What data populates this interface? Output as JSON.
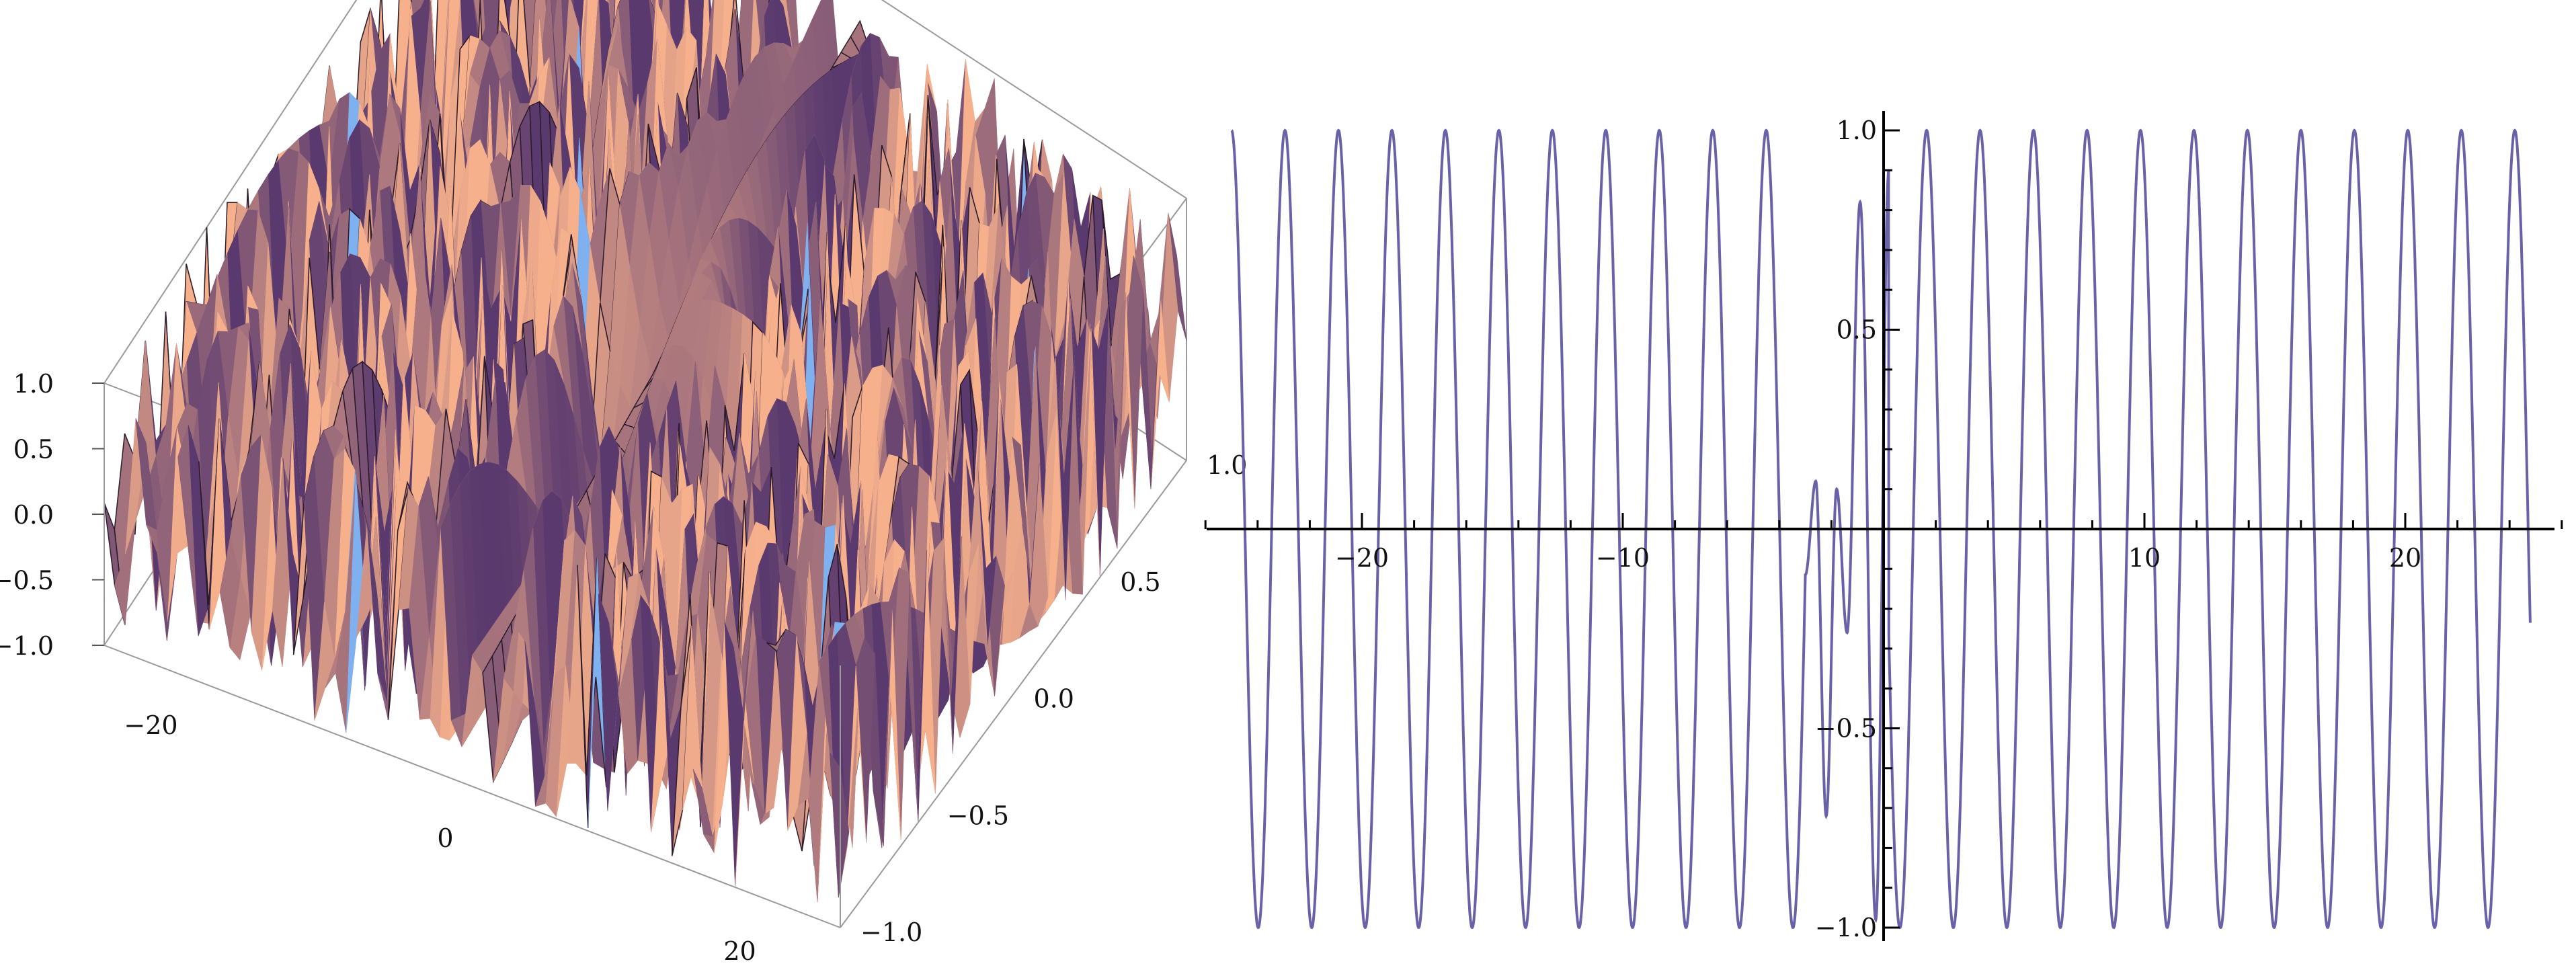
{
  "chart_data": [
    {
      "type": "surface",
      "panel": "left",
      "title": "",
      "colors": {
        "warm": "#f6b08c",
        "shadow": "#5a3a6e",
        "highlight": "#7fb1f0",
        "edge": "#2a1a2a"
      },
      "x_axis": {
        "range": [
          -25,
          25
        ],
        "ticks": [
          -20,
          0,
          20
        ],
        "tick_labels": [
          "−20",
          "0",
          "20"
        ]
      },
      "y_axis": {
        "range": [
          -1,
          1
        ],
        "ticks": [
          -1,
          -0.5,
          0,
          0.5,
          1
        ],
        "tick_labels": [
          "−1.0",
          "−0.5",
          "0.0",
          "0.5",
          "1.0"
        ]
      },
      "z_axis": {
        "range": [
          -1,
          1
        ],
        "ticks": [
          -1,
          -0.5,
          0,
          0.5,
          1
        ],
        "tick_labels": [
          "−1.0",
          "−0.5",
          "0.0",
          "0.5",
          "1.0"
        ]
      },
      "box": true
    },
    {
      "type": "line",
      "panel": "right",
      "title": "",
      "xlabel": "",
      "ylabel": "",
      "xlim": [
        -26,
        26
      ],
      "ylim": [
        -1,
        1
      ],
      "x_ticks": [
        -20,
        -10,
        10,
        20
      ],
      "x_tick_labels": [
        "−20",
        "−10",
        "10",
        "20"
      ],
      "y_ticks": [
        -1,
        -0.5,
        0.5,
        1
      ],
      "y_tick_labels": [
        "−1.0",
        "−0.5",
        "0.5",
        "1.0"
      ],
      "grid": false,
      "series": [
        {
          "x_start": -25,
          "x_end": 24.8,
          "approx_period": 2.05,
          "color": "#6a62a8",
          "peaks_y": 1,
          "troughs_y": -1,
          "near_origin": [
            [
              -2.6,
              0.12
            ],
            [
              -2.2,
              -0.72
            ],
            [
              -1.8,
              0.1
            ],
            [
              -1.4,
              -0.26
            ],
            [
              -0.9,
              0.82
            ],
            [
              -0.3,
              -0.98
            ]
          ]
        }
      ]
    }
  ]
}
